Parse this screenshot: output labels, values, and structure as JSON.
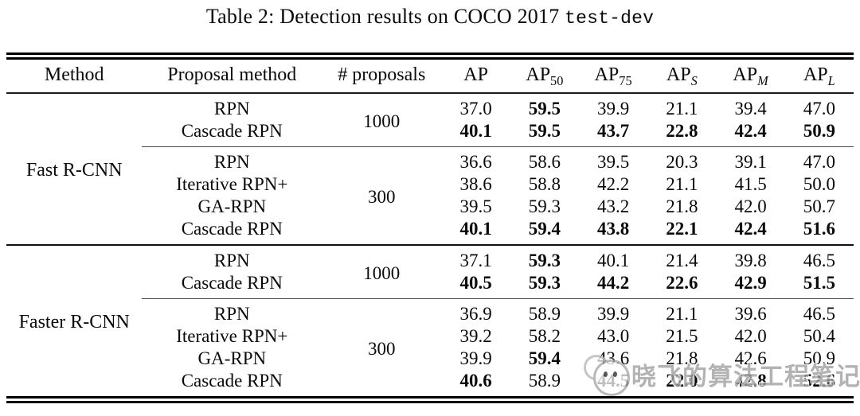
{
  "caption": {
    "text": "Table 2: Detection results on COCO 2017",
    "mono": "test-dev"
  },
  "header": {
    "method": "Method",
    "proposal_method": "Proposal method",
    "num_proposals": "# proposals",
    "metrics": [
      {
        "base": "AP",
        "sub": ""
      },
      {
        "base": "AP",
        "sub": "50"
      },
      {
        "base": "AP",
        "sub": "75"
      },
      {
        "base": "AP",
        "sub": "S"
      },
      {
        "base": "AP",
        "sub": "M"
      },
      {
        "base": "AP",
        "sub": "L"
      }
    ]
  },
  "groups": [
    {
      "method": "Fast R-CNN",
      "blocks": [
        {
          "proposals": "1000",
          "rows": [
            {
              "name": "RPN",
              "values": [
                "37.0",
                "59.5",
                "39.9",
                "21.1",
                "39.4",
                "47.0"
              ],
              "bold": [
                false,
                true,
                false,
                false,
                false,
                false
              ]
            },
            {
              "name": "Cascade RPN",
              "values": [
                "40.1",
                "59.5",
                "43.7",
                "22.8",
                "42.4",
                "50.9"
              ],
              "bold": [
                true,
                true,
                true,
                true,
                true,
                true
              ]
            }
          ]
        },
        {
          "proposals": "300",
          "rows": [
            {
              "name": "RPN",
              "values": [
                "36.6",
                "58.6",
                "39.5",
                "20.3",
                "39.1",
                "47.0"
              ],
              "bold": [
                false,
                false,
                false,
                false,
                false,
                false
              ]
            },
            {
              "name": "Iterative RPN+",
              "values": [
                "38.6",
                "58.8",
                "42.2",
                "21.1",
                "41.5",
                "50.0"
              ],
              "bold": [
                false,
                false,
                false,
                false,
                false,
                false
              ]
            },
            {
              "name": "GA-RPN",
              "values": [
                "39.5",
                "59.3",
                "43.2",
                "21.8",
                "42.0",
                "50.7"
              ],
              "bold": [
                false,
                false,
                false,
                false,
                false,
                false
              ]
            },
            {
              "name": "Cascade RPN",
              "values": [
                "40.1",
                "59.4",
                "43.8",
                "22.1",
                "42.4",
                "51.6"
              ],
              "bold": [
                true,
                true,
                true,
                true,
                true,
                true
              ]
            }
          ]
        }
      ]
    },
    {
      "method": "Faster R-CNN",
      "blocks": [
        {
          "proposals": "1000",
          "rows": [
            {
              "name": "RPN",
              "values": [
                "37.1",
                "59.3",
                "40.1",
                "21.4",
                "39.8",
                "46.5"
              ],
              "bold": [
                false,
                true,
                false,
                false,
                false,
                false
              ]
            },
            {
              "name": "Cascade RPN",
              "values": [
                "40.5",
                "59.3",
                "44.2",
                "22.6",
                "42.9",
                "51.5"
              ],
              "bold": [
                true,
                true,
                true,
                true,
                true,
                true
              ]
            }
          ]
        },
        {
          "proposals": "300",
          "rows": [
            {
              "name": "RPN",
              "values": [
                "36.9",
                "58.9",
                "39.9",
                "21.1",
                "39.6",
                "46.5"
              ],
              "bold": [
                false,
                false,
                false,
                false,
                false,
                false
              ]
            },
            {
              "name": "Iterative RPN+",
              "values": [
                "39.2",
                "58.2",
                "43.0",
                "21.5",
                "42.0",
                "50.4"
              ],
              "bold": [
                false,
                false,
                false,
                false,
                false,
                false
              ]
            },
            {
              "name": "GA-RPN",
              "values": [
                "39.9",
                "59.4",
                "43.6",
                "21.8",
                "42.6",
                "50.9"
              ],
              "bold": [
                false,
                true,
                false,
                false,
                false,
                false
              ]
            },
            {
              "name": "Cascade RPN",
              "values": [
                "40.6",
                "58.9",
                "44.5",
                "22.0",
                "42.8",
                "52.6"
              ],
              "bold": [
                true,
                false,
                true,
                true,
                true,
                true
              ]
            }
          ]
        }
      ]
    }
  ],
  "watermark": {
    "text": "晓飞的算法工程笔记"
  }
}
